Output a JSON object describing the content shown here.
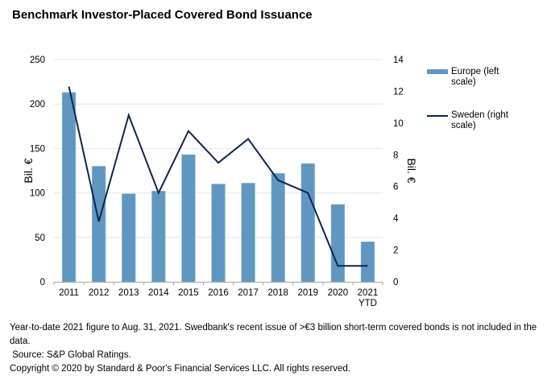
{
  "chart_data": {
    "type": "bar",
    "title": "Benchmark Investor-Placed Covered Bond Issuance",
    "categories": [
      "2011",
      "2012",
      "2013",
      "2014",
      "2015",
      "2016",
      "2017",
      "2018",
      "2019",
      "2020",
      "2021 YTD"
    ],
    "category_lines": [
      [
        "2011"
      ],
      [
        "2012"
      ],
      [
        "2013"
      ],
      [
        "2014"
      ],
      [
        "2015"
      ],
      [
        "2016"
      ],
      [
        "2017"
      ],
      [
        "2018"
      ],
      [
        "2019"
      ],
      [
        "2020"
      ],
      [
        "2021",
        "YTD"
      ]
    ],
    "series": [
      {
        "name": "Europe (left scale)",
        "type": "bar",
        "axis": "left",
        "color": "#5f97c0",
        "values": [
          213,
          130,
          99,
          102,
          143,
          110,
          111,
          122,
          133,
          87,
          45
        ]
      },
      {
        "name": "Sweden (right scale)",
        "type": "line",
        "axis": "right",
        "color": "#0d2451",
        "values": [
          12.3,
          3.8,
          10.5,
          5.6,
          9.5,
          7.5,
          9.0,
          6.4,
          5.6,
          1.0,
          1.0
        ]
      }
    ],
    "ylabel": "Bil. €",
    "y2label": "Bil. €",
    "ylim": [
      0,
      250
    ],
    "y2lim": [
      0,
      14
    ],
    "yticks": [
      0,
      50,
      100,
      150,
      200,
      250
    ],
    "y2ticks": [
      0,
      2,
      4,
      6,
      8,
      10,
      12,
      14
    ],
    "grid": true,
    "legend_position": "right",
    "legend": [
      {
        "lines": [
          "Europe (left",
          "scale)"
        ]
      },
      {
        "lines": [
          "Sweden (right",
          "scale)"
        ]
      }
    ]
  },
  "notes": [
    "Year-to-date 2021 figure to Aug. 31, 2021. Swedbank's recent issue of >€3 billion short-term covered bonds is not included in the data.",
    " Source: S&P Global Ratings.",
    "Copyright © 2020 by Standard & Poor's Financial Services LLC. All rights reserved."
  ]
}
